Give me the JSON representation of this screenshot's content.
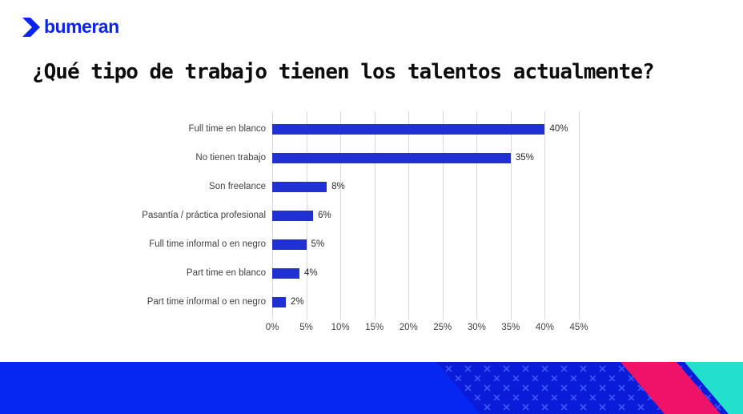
{
  "logo": {
    "text": "bumeran",
    "color": "#0b24f0"
  },
  "title": "¿Qué tipo de trabajo tienen los talentos actualmente?",
  "chart_data": {
    "type": "bar",
    "orientation": "horizontal",
    "title": "¿Qué tipo de trabajo tienen los talentos actualmente?",
    "categories": [
      "Full time en blanco",
      "No tienen trabajo",
      "Son freelance",
      "Pasantía / práctica profesional",
      "Full time informal o en negro",
      "Part time en blanco",
      "Part time informal o en negro"
    ],
    "values": [
      40,
      35,
      8,
      6,
      5,
      4,
      2
    ],
    "value_labels": [
      "40%",
      "35%",
      "8%",
      "6%",
      "5%",
      "4%",
      "2%"
    ],
    "xlim": [
      0,
      45
    ],
    "ticks": [
      0,
      5,
      10,
      15,
      20,
      25,
      30,
      35,
      40,
      45
    ],
    "tick_labels": [
      "0%",
      "5%",
      "10%",
      "15%",
      "20%",
      "25%",
      "30%",
      "35%",
      "40%",
      "45%"
    ],
    "bar_color": "#2130d2",
    "grid": true,
    "legend": "none"
  },
  "footer": {
    "base_color": "#0627f2",
    "dark_color": "#0a1cd8",
    "pattern_cross_color": "#3d55ff",
    "pink_color": "#f01268",
    "teal_color": "#23e0cd"
  }
}
